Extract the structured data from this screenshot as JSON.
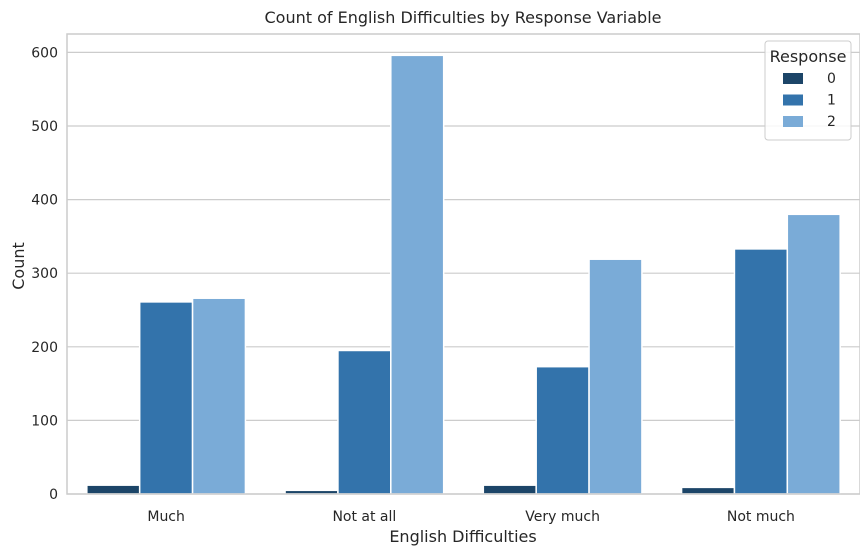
{
  "chart_data": {
    "type": "bar",
    "title": "Count of English Difficulties by Response Variable",
    "xlabel": "English Difficulties",
    "ylabel": "Count",
    "categories": [
      "Much",
      "Not at all",
      "Very much",
      "Not much"
    ],
    "ylim": [
      0,
      625
    ],
    "yticks": [
      0,
      100,
      200,
      300,
      400,
      500,
      600
    ],
    "grid": true,
    "legend": {
      "title": "Response",
      "placement": "top-right"
    },
    "series": [
      {
        "name": "0",
        "color": "#1c4568",
        "values": [
          12,
          5,
          12,
          9
        ]
      },
      {
        "name": "1",
        "color": "#3373ab",
        "values": [
          261,
          195,
          173,
          333
        ]
      },
      {
        "name": "2",
        "color": "#7aabd7",
        "values": [
          266,
          596,
          319,
          380
        ]
      }
    ]
  }
}
